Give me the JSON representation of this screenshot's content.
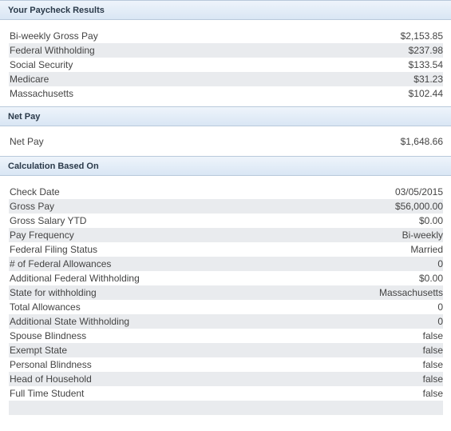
{
  "paycheck": {
    "title": "Your Paycheck Results",
    "rows": [
      {
        "label": "Bi-weekly Gross Pay",
        "value": "$2,153.85"
      },
      {
        "label": "Federal Withholding",
        "value": "$237.98"
      },
      {
        "label": "Social Security",
        "value": "$133.54"
      },
      {
        "label": "Medicare",
        "value": "$31.23"
      },
      {
        "label": "Massachusetts",
        "value": "$102.44"
      }
    ]
  },
  "netpay": {
    "title": "Net Pay",
    "label": "Net Pay",
    "value": "$1,648.66"
  },
  "calc": {
    "title": "Calculation Based On",
    "rows": [
      {
        "label": "Check Date",
        "value": "03/05/2015"
      },
      {
        "label": "Gross Pay",
        "value": "$56,000.00"
      },
      {
        "label": "Gross Salary YTD",
        "value": "$0.00"
      },
      {
        "label": "Pay Frequency",
        "value": "Bi-weekly"
      },
      {
        "label": "Federal Filing Status",
        "value": "Married"
      },
      {
        "label": "# of Federal Allowances",
        "value": "0"
      },
      {
        "label": "Additional Federal Withholding",
        "value": "$0.00"
      },
      {
        "label": "State for withholding",
        "value": "Massachusetts"
      },
      {
        "label": "Total Allowances",
        "value": "0"
      },
      {
        "label": "Additional State Withholding",
        "value": "0"
      },
      {
        "label": "Spouse Blindness",
        "value": "false"
      },
      {
        "label": "Exempt State",
        "value": "false"
      },
      {
        "label": "Personal Blindness",
        "value": "false"
      },
      {
        "label": "Head of Household",
        "value": "false"
      },
      {
        "label": "Full Time Student",
        "value": "false"
      }
    ]
  }
}
